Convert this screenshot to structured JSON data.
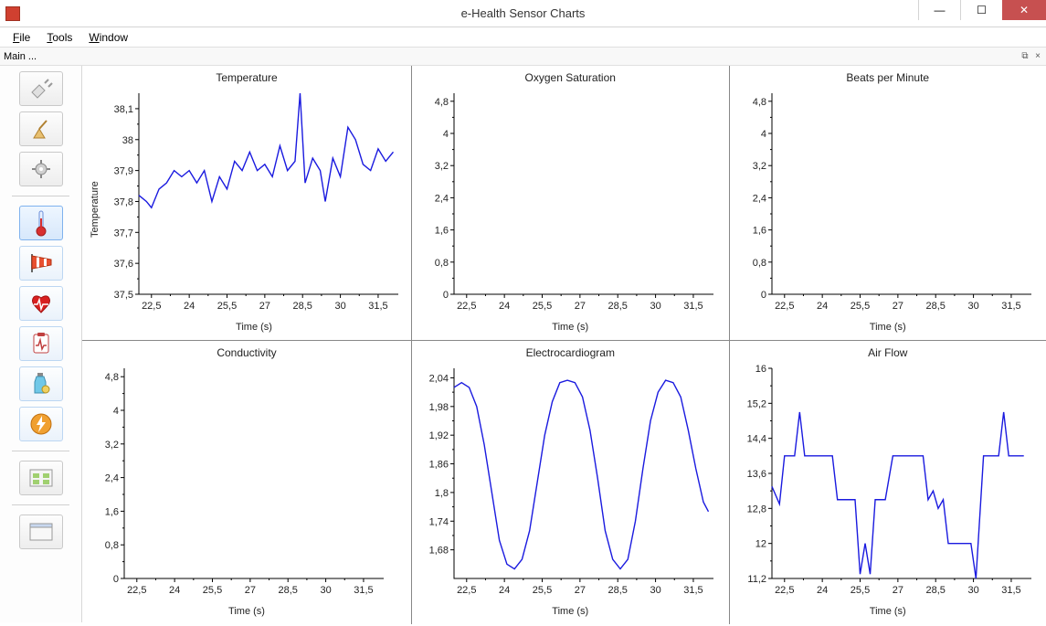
{
  "window": {
    "title": "e-Health Sensor Charts",
    "minimize": "—",
    "maximize": "☐",
    "close": "✕"
  },
  "menu": {
    "file": "File",
    "tools": "Tools",
    "window": "Window"
  },
  "panel": {
    "label": "Main ...",
    "float_icon": "⧉",
    "close_icon": "×"
  },
  "sidebar": {
    "plug": "plug-icon",
    "broom": "broom-icon",
    "gear": "gear-icon",
    "thermo": "thermometer-icon",
    "windsock": "windsock-icon",
    "heart": "heart-icon",
    "clipboard": "clipboard-icon",
    "bottle": "bottle-icon",
    "bolt": "bolt-icon",
    "panels": "panels-icon",
    "window": "window-icon"
  },
  "colors": {
    "series": "#1a1adf",
    "axis": "#000000",
    "grid_bg": "#ffffff"
  },
  "xaxis_common": {
    "label": "Time (s)",
    "min": 22.0,
    "max": 32.3,
    "ticks": [
      22.5,
      24,
      25.5,
      27,
      28.5,
      30,
      31.5
    ],
    "tick_labels": [
      "22,5",
      "24",
      "25,5",
      "27",
      "28,5",
      "30",
      "31,5"
    ]
  },
  "y_0_5": {
    "min": 0,
    "max": 5.0,
    "ticks": [
      0,
      0.8,
      1.6,
      2.4,
      3.2,
      4,
      4.8
    ],
    "tick_labels": [
      "0",
      "0,8",
      "1,6",
      "2,4",
      "3,2",
      "4",
      "4,8"
    ]
  },
  "charts": [
    {
      "title": "Temperature",
      "ylabel": "Temperature",
      "y": {
        "min": 37.5,
        "max": 38.15,
        "ticks": [
          37.5,
          37.6,
          37.7,
          37.8,
          37.9,
          38,
          38.1
        ],
        "tick_labels": [
          "37,5",
          "37,6",
          "37,7",
          "37,8",
          "37,9",
          "38",
          "38,1"
        ]
      },
      "data": [
        [
          22.0,
          37.82
        ],
        [
          22.3,
          37.8
        ],
        [
          22.5,
          37.78
        ],
        [
          22.8,
          37.84
        ],
        [
          23.1,
          37.86
        ],
        [
          23.4,
          37.9
        ],
        [
          23.7,
          37.88
        ],
        [
          24.0,
          37.9
        ],
        [
          24.3,
          37.86
        ],
        [
          24.6,
          37.9
        ],
        [
          24.9,
          37.8
        ],
        [
          25.2,
          37.88
        ],
        [
          25.5,
          37.84
        ],
        [
          25.8,
          37.93
        ],
        [
          26.1,
          37.9
        ],
        [
          26.4,
          37.96
        ],
        [
          26.7,
          37.9
        ],
        [
          27.0,
          37.92
        ],
        [
          27.3,
          37.88
        ],
        [
          27.6,
          37.98
        ],
        [
          27.9,
          37.9
        ],
        [
          28.2,
          37.93
        ],
        [
          28.4,
          38.15
        ],
        [
          28.6,
          37.86
        ],
        [
          28.9,
          37.94
        ],
        [
          29.2,
          37.9
        ],
        [
          29.4,
          37.8
        ],
        [
          29.7,
          37.94
        ],
        [
          30.0,
          37.88
        ],
        [
          30.3,
          38.04
        ],
        [
          30.6,
          38.0
        ],
        [
          30.9,
          37.92
        ],
        [
          31.2,
          37.9
        ],
        [
          31.5,
          37.97
        ],
        [
          31.8,
          37.93
        ],
        [
          32.1,
          37.96
        ]
      ]
    },
    {
      "title": "Oxygen Saturation",
      "ylabel": "",
      "y": "y_0_5",
      "data": []
    },
    {
      "title": "Beats per Minute",
      "ylabel": "",
      "y": "y_0_5",
      "data": []
    },
    {
      "title": "Conductivity",
      "ylabel": "",
      "y": "y_0_5",
      "data": []
    },
    {
      "title": "Electrocardiogram",
      "ylabel": "",
      "y": {
        "min": 1.62,
        "max": 2.06,
        "ticks": [
          1.68,
          1.74,
          1.8,
          1.86,
          1.92,
          1.98,
          2.04
        ],
        "tick_labels": [
          "1,68",
          "1,74",
          "1,8",
          "1,86",
          "1,92",
          "1,98",
          "2,04"
        ]
      },
      "data": [
        [
          22.0,
          2.02
        ],
        [
          22.3,
          2.03
        ],
        [
          22.6,
          2.02
        ],
        [
          22.9,
          1.98
        ],
        [
          23.2,
          1.9
        ],
        [
          23.5,
          1.8
        ],
        [
          23.8,
          1.7
        ],
        [
          24.1,
          1.65
        ],
        [
          24.4,
          1.64
        ],
        [
          24.7,
          1.66
        ],
        [
          25.0,
          1.72
        ],
        [
          25.3,
          1.82
        ],
        [
          25.6,
          1.92
        ],
        [
          25.9,
          1.99
        ],
        [
          26.2,
          2.03
        ],
        [
          26.5,
          2.035
        ],
        [
          26.8,
          2.03
        ],
        [
          27.1,
          2.0
        ],
        [
          27.4,
          1.93
        ],
        [
          27.7,
          1.83
        ],
        [
          28.0,
          1.72
        ],
        [
          28.3,
          1.66
        ],
        [
          28.6,
          1.64
        ],
        [
          28.9,
          1.66
        ],
        [
          29.2,
          1.74
        ],
        [
          29.5,
          1.85
        ],
        [
          29.8,
          1.95
        ],
        [
          30.1,
          2.01
        ],
        [
          30.4,
          2.035
        ],
        [
          30.7,
          2.03
        ],
        [
          31.0,
          2.0
        ],
        [
          31.3,
          1.93
        ],
        [
          31.6,
          1.85
        ],
        [
          31.9,
          1.78
        ],
        [
          32.1,
          1.76
        ]
      ]
    },
    {
      "title": "Air Flow",
      "ylabel": "",
      "y": {
        "min": 11.2,
        "max": 16.0,
        "ticks": [
          11.2,
          12,
          12.8,
          13.6,
          14.4,
          15.2,
          16
        ],
        "tick_labels": [
          "11,2",
          "12",
          "12,8",
          "13,6",
          "14,4",
          "15,2",
          "16"
        ]
      },
      "data": [
        [
          22.0,
          13.3
        ],
        [
          22.3,
          12.9
        ],
        [
          22.5,
          14.0
        ],
        [
          22.7,
          14.0
        ],
        [
          22.9,
          14.0
        ],
        [
          23.1,
          15.0
        ],
        [
          23.3,
          14.0
        ],
        [
          23.5,
          14.0
        ],
        [
          23.8,
          14.0
        ],
        [
          24.1,
          14.0
        ],
        [
          24.4,
          14.0
        ],
        [
          24.6,
          13.0
        ],
        [
          24.8,
          13.0
        ],
        [
          25.1,
          13.0
        ],
        [
          25.3,
          13.0
        ],
        [
          25.5,
          11.3
        ],
        [
          25.7,
          12.0
        ],
        [
          25.9,
          11.3
        ],
        [
          26.1,
          13.0
        ],
        [
          26.3,
          13.0
        ],
        [
          26.5,
          13.0
        ],
        [
          26.8,
          14.0
        ],
        [
          27.1,
          14.0
        ],
        [
          27.4,
          14.0
        ],
        [
          27.7,
          14.0
        ],
        [
          28.0,
          14.0
        ],
        [
          28.2,
          13.0
        ],
        [
          28.4,
          13.2
        ],
        [
          28.6,
          12.8
        ],
        [
          28.8,
          13.0
        ],
        [
          29.0,
          12.0
        ],
        [
          29.3,
          12.0
        ],
        [
          29.6,
          12.0
        ],
        [
          29.9,
          12.0
        ],
        [
          30.1,
          11.2
        ],
        [
          30.4,
          14.0
        ],
        [
          30.7,
          14.0
        ],
        [
          31.0,
          14.0
        ],
        [
          31.2,
          15.0
        ],
        [
          31.4,
          14.0
        ],
        [
          31.7,
          14.0
        ],
        [
          32.0,
          14.0
        ]
      ]
    }
  ]
}
